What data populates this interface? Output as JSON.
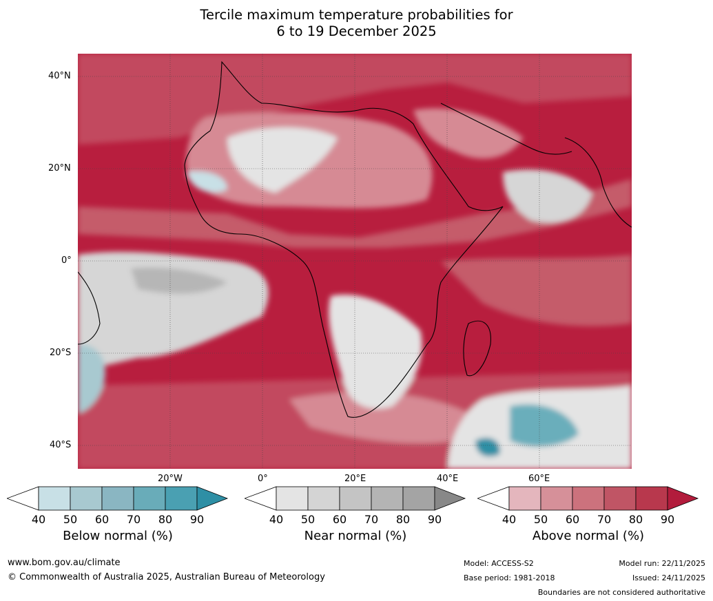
{
  "title_line1": "Tercile maximum temperature probabilities for",
  "title_line2": "6 to 19 December 2025",
  "lat_labels": [
    "40°N",
    "20°N",
    "0°",
    "20°S",
    "40°S"
  ],
  "lon_labels": [
    "20°W",
    "0°",
    "20°E",
    "40°E",
    "60°E"
  ],
  "colorbars": [
    {
      "name": "below",
      "label": "Below normal (%)",
      "ticks": [
        "40",
        "50",
        "60",
        "70",
        "80",
        "90"
      ],
      "colors": [
        "#ffffff",
        "#c8e0e6",
        "#a8c9d0",
        "#8ab6c2",
        "#69acb9",
        "#4aa0b2",
        "#2e8fa5"
      ]
    },
    {
      "name": "near",
      "label": "Near normal (%)",
      "ticks": [
        "40",
        "50",
        "60",
        "70",
        "80",
        "90"
      ],
      "colors": [
        "#ffffff",
        "#e4e4e4",
        "#d4d4d4",
        "#c4c4c4",
        "#b4b4b4",
        "#a4a4a4",
        "#888888"
      ]
    },
    {
      "name": "above",
      "label": "Above normal (%)",
      "ticks": [
        "40",
        "50",
        "60",
        "70",
        "80",
        "90"
      ],
      "colors": [
        "#ffffff",
        "#e4b6bd",
        "#d69099",
        "#cc727d",
        "#c05565",
        "#b8384d",
        "#b21c3c"
      ]
    }
  ],
  "footer": {
    "website": "www.bom.gov.au/climate",
    "copyright": "© Commonwealth of Australia 2025, Australian Bureau of Meteorology",
    "model": "Model: ACCESS-S2",
    "base_period": "Base period: 1981-2018",
    "model_run": "Model run: 22/11/2025",
    "issued": "Issued: 24/11/2025",
    "disclaimer": "Boundaries are not considered authoritative"
  }
}
